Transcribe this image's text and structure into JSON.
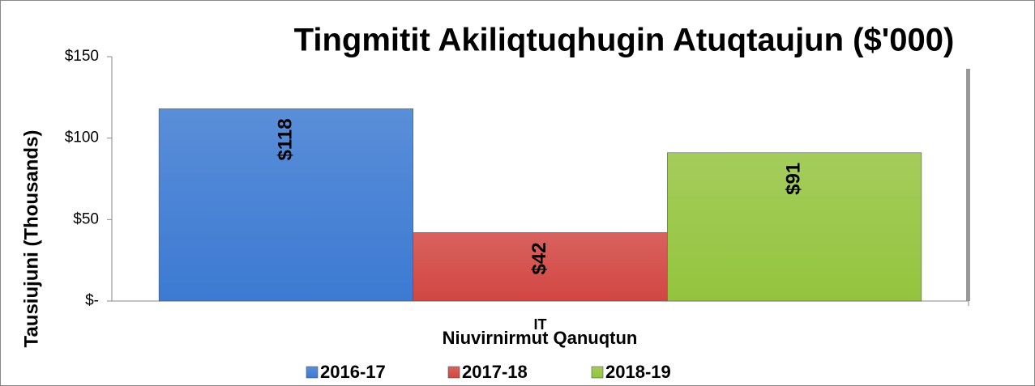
{
  "chart_data": {
    "type": "bar",
    "title": "Tingmitit Akiliqtuqhugin Atuqtaujun ($'000)",
    "x_label": "Niuvirnirmut Qanuqtun",
    "y_label": "Tausiujuni (Thousands)",
    "categories": [
      "IT"
    ],
    "series": [
      {
        "name": "2016-17",
        "color": "#3c7ad2",
        "values": [
          118
        ],
        "value_labels": [
          "$118"
        ]
      },
      {
        "name": "2017-18",
        "color": "#d24642",
        "values": [
          42
        ],
        "value_labels": [
          "$42"
        ]
      },
      {
        "name": "2018-19",
        "color": "#94c43e",
        "values": [
          91
        ],
        "value_labels": [
          "$91"
        ]
      }
    ],
    "ylim": [
      0,
      150
    ],
    "yticks": [
      {
        "value": 0,
        "label": "$-"
      },
      {
        "value": 50,
        "label": "$50"
      },
      {
        "value": 100,
        "label": "$100"
      },
      {
        "value": 150,
        "label": "$150"
      }
    ],
    "legend": "bottom"
  }
}
